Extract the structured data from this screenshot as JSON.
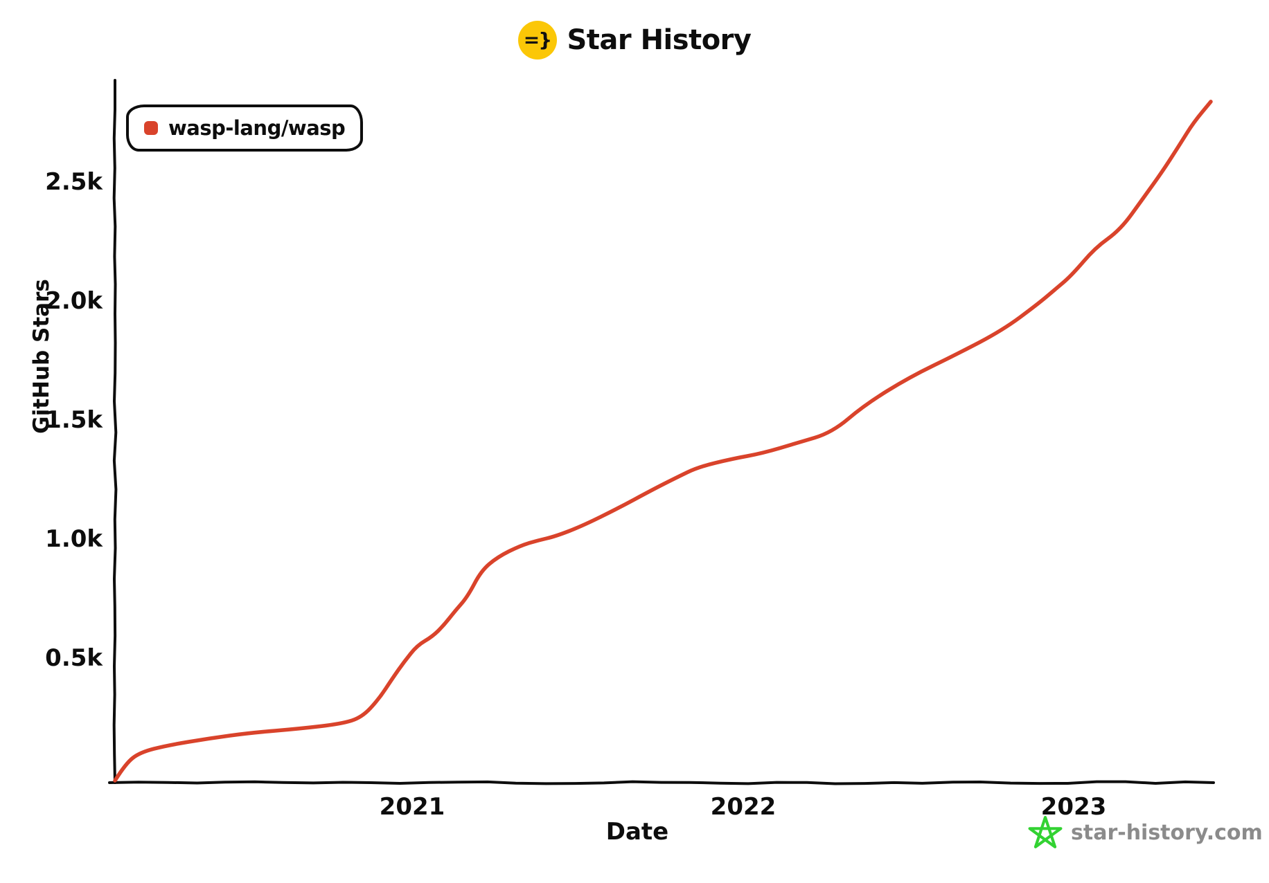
{
  "title": {
    "text": "Star History",
    "icon_text": "=}",
    "icon_bg": "#fbc707"
  },
  "legend": {
    "items": [
      {
        "label": "wasp-lang/wasp",
        "color": "#d9432b"
      }
    ]
  },
  "footer": {
    "brand": "star-history.com",
    "star_color": "#32d232",
    "text_color": "#8b8b8b"
  },
  "chart_data": {
    "type": "line",
    "title": "Star History",
    "xlabel": "Date",
    "ylabel": "GitHub Stars",
    "grid": false,
    "legend_position": "top-left",
    "x_ticks": [
      "2021",
      "2022",
      "2023"
    ],
    "y_ticks": [
      "2.5k",
      "2.0k",
      "1.5k",
      "1.0k",
      "0.5k"
    ],
    "y_tick_values": [
      2500,
      2000,
      1500,
      1000,
      500
    ],
    "ylim": [
      0,
      2936
    ],
    "xlim": [
      "2020-02-06",
      "2023-06-02"
    ],
    "series": [
      {
        "name": "wasp-lang/wasp",
        "color": "#d9432b",
        "points": [
          {
            "date": "2020-02-06",
            "stars": 0
          },
          {
            "date": "2020-02-18",
            "stars": 73
          },
          {
            "date": "2020-03-05",
            "stars": 119
          },
          {
            "date": "2020-04-04",
            "stars": 148
          },
          {
            "date": "2020-05-20",
            "stars": 177
          },
          {
            "date": "2020-07-05",
            "stars": 201
          },
          {
            "date": "2020-08-28",
            "stars": 218
          },
          {
            "date": "2020-10-13",
            "stars": 238
          },
          {
            "date": "2020-11-05",
            "stars": 265
          },
          {
            "date": "2020-11-24",
            "stars": 343
          },
          {
            "date": "2020-12-09",
            "stars": 430
          },
          {
            "date": "2020-12-22",
            "stars": 500
          },
          {
            "date": "2021-01-05",
            "stars": 567
          },
          {
            "date": "2021-01-22",
            "stars": 605
          },
          {
            "date": "2021-02-04",
            "stars": 654
          },
          {
            "date": "2021-02-16",
            "stars": 712
          },
          {
            "date": "2021-03-02",
            "stars": 773
          },
          {
            "date": "2021-03-17",
            "stars": 881
          },
          {
            "date": "2021-04-04",
            "stars": 939
          },
          {
            "date": "2021-04-30",
            "stars": 988
          },
          {
            "date": "2021-05-19",
            "stars": 1009
          },
          {
            "date": "2021-06-07",
            "stars": 1026
          },
          {
            "date": "2021-07-07",
            "stars": 1070
          },
          {
            "date": "2021-08-15",
            "stars": 1143
          },
          {
            "date": "2021-09-22",
            "stars": 1221
          },
          {
            "date": "2021-10-19",
            "stars": 1273
          },
          {
            "date": "2021-11-12",
            "stars": 1317
          },
          {
            "date": "2021-12-20",
            "stars": 1352
          },
          {
            "date": "2022-01-22",
            "stars": 1375
          },
          {
            "date": "2022-03-02",
            "stars": 1419
          },
          {
            "date": "2022-04-09",
            "stars": 1462
          },
          {
            "date": "2022-05-15",
            "stars": 1578
          },
          {
            "date": "2022-07-04",
            "stars": 1695
          },
          {
            "date": "2022-08-25",
            "stars": 1791
          },
          {
            "date": "2022-10-15",
            "stars": 1893
          },
          {
            "date": "2022-11-22",
            "stars": 2000
          },
          {
            "date": "2022-12-12",
            "stars": 2064
          },
          {
            "date": "2022-12-30",
            "stars": 2122
          },
          {
            "date": "2023-01-25",
            "stars": 2238
          },
          {
            "date": "2023-02-22",
            "stars": 2314
          },
          {
            "date": "2023-03-19",
            "stars": 2445
          },
          {
            "date": "2023-04-11",
            "stars": 2567
          },
          {
            "date": "2023-04-29",
            "stars": 2674
          },
          {
            "date": "2023-05-14",
            "stars": 2765
          },
          {
            "date": "2023-06-02",
            "stars": 2852
          }
        ]
      }
    ]
  }
}
